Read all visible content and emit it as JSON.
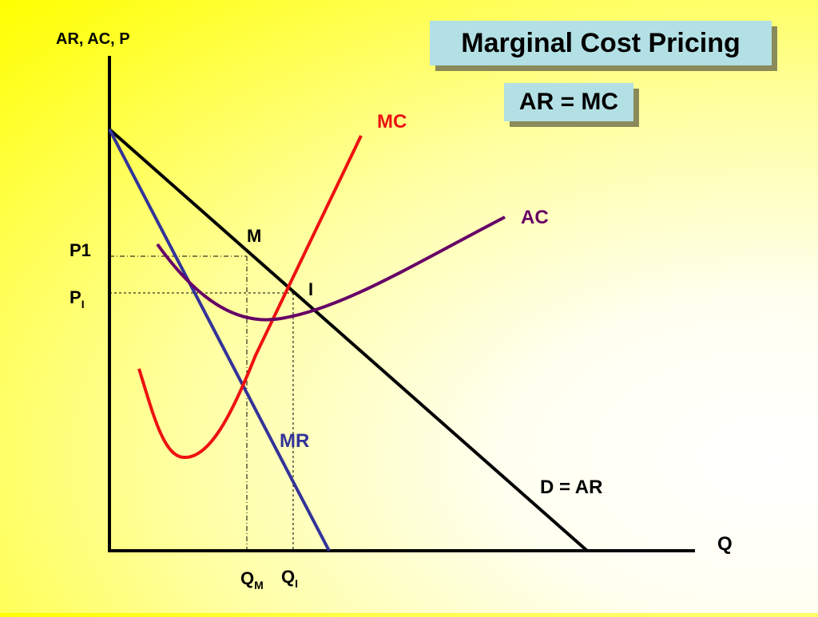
{
  "title": "Marginal Cost Pricing",
  "subtitle": "AR = MC",
  "axes": {
    "y_label": "AR, AC, P",
    "x_label": "Q"
  },
  "curves": {
    "demand": {
      "label": "D = AR",
      "color": "#000000"
    },
    "mr": {
      "label": "MR",
      "color": "#333399"
    },
    "mc": {
      "label": "MC",
      "color": "#ee1111"
    },
    "ac": {
      "label": "AC",
      "color": "#660066"
    }
  },
  "points": {
    "m": "M",
    "i": "I"
  },
  "price_labels": {
    "p1": "P1",
    "pi_main": "P",
    "pi_sub": "I"
  },
  "quantity_labels": {
    "qm_main": "Q",
    "qm_sub": "M",
    "qi_main": "Q",
    "qi_sub": "I"
  },
  "colors": {
    "title_bg": "#b3e0e4",
    "background": "#ffff00"
  }
}
